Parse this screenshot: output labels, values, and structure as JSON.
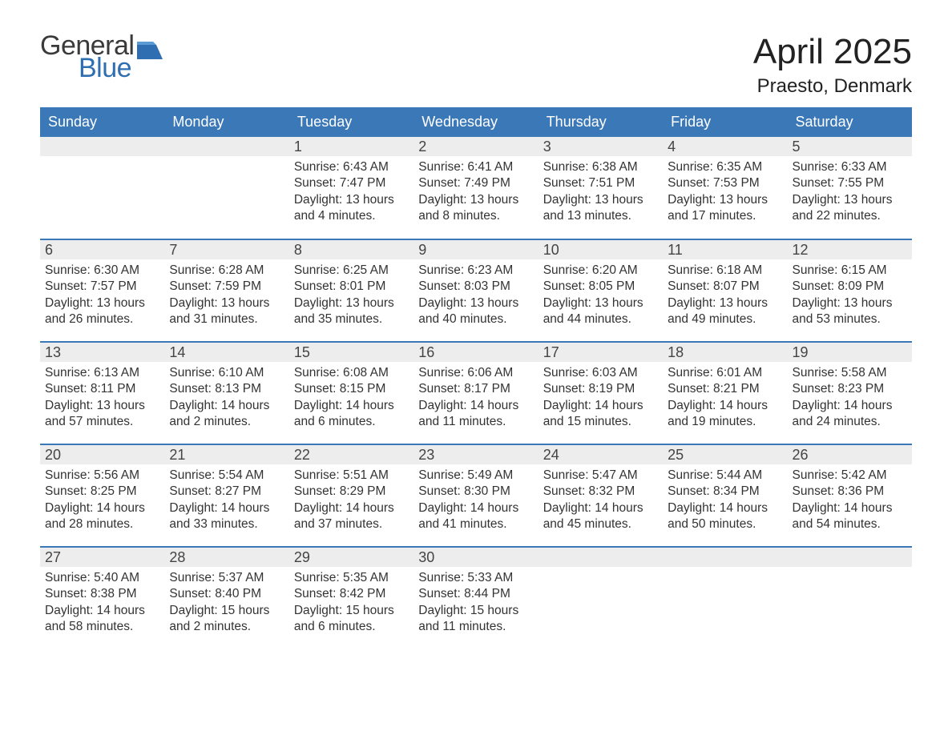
{
  "brand": {
    "word1": "General",
    "word2": "Blue",
    "word1_color": "#3a3a3a",
    "word2_color": "#2f6fb1",
    "flag_color": "#2f6fb1"
  },
  "title": "April 2025",
  "location": "Praesto, Denmark",
  "colors": {
    "header_bg": "#3b78b8",
    "header_text": "#ffffff",
    "row_accent": "#3b78b8",
    "daynum_bg": "#ededed",
    "body_text": "#333333",
    "page_bg": "#ffffff"
  },
  "fonts": {
    "title_size_pt": 33,
    "location_size_pt": 18,
    "dayheader_size_pt": 14,
    "body_size_pt": 12
  },
  "day_headers": [
    "Sunday",
    "Monday",
    "Tuesday",
    "Wednesday",
    "Thursday",
    "Friday",
    "Saturday"
  ],
  "weeks": [
    [
      null,
      null,
      {
        "n": "1",
        "sr": "6:43 AM",
        "ss": "7:47 PM",
        "dl": "13 hours and 4 minutes."
      },
      {
        "n": "2",
        "sr": "6:41 AM",
        "ss": "7:49 PM",
        "dl": "13 hours and 8 minutes."
      },
      {
        "n": "3",
        "sr": "6:38 AM",
        "ss": "7:51 PM",
        "dl": "13 hours and 13 minutes."
      },
      {
        "n": "4",
        "sr": "6:35 AM",
        "ss": "7:53 PM",
        "dl": "13 hours and 17 minutes."
      },
      {
        "n": "5",
        "sr": "6:33 AM",
        "ss": "7:55 PM",
        "dl": "13 hours and 22 minutes."
      }
    ],
    [
      {
        "n": "6",
        "sr": "6:30 AM",
        "ss": "7:57 PM",
        "dl": "13 hours and 26 minutes."
      },
      {
        "n": "7",
        "sr": "6:28 AM",
        "ss": "7:59 PM",
        "dl": "13 hours and 31 minutes."
      },
      {
        "n": "8",
        "sr": "6:25 AM",
        "ss": "8:01 PM",
        "dl": "13 hours and 35 minutes."
      },
      {
        "n": "9",
        "sr": "6:23 AM",
        "ss": "8:03 PM",
        "dl": "13 hours and 40 minutes."
      },
      {
        "n": "10",
        "sr": "6:20 AM",
        "ss": "8:05 PM",
        "dl": "13 hours and 44 minutes."
      },
      {
        "n": "11",
        "sr": "6:18 AM",
        "ss": "8:07 PM",
        "dl": "13 hours and 49 minutes."
      },
      {
        "n": "12",
        "sr": "6:15 AM",
        "ss": "8:09 PM",
        "dl": "13 hours and 53 minutes."
      }
    ],
    [
      {
        "n": "13",
        "sr": "6:13 AM",
        "ss": "8:11 PM",
        "dl": "13 hours and 57 minutes."
      },
      {
        "n": "14",
        "sr": "6:10 AM",
        "ss": "8:13 PM",
        "dl": "14 hours and 2 minutes."
      },
      {
        "n": "15",
        "sr": "6:08 AM",
        "ss": "8:15 PM",
        "dl": "14 hours and 6 minutes."
      },
      {
        "n": "16",
        "sr": "6:06 AM",
        "ss": "8:17 PM",
        "dl": "14 hours and 11 minutes."
      },
      {
        "n": "17",
        "sr": "6:03 AM",
        "ss": "8:19 PM",
        "dl": "14 hours and 15 minutes."
      },
      {
        "n": "18",
        "sr": "6:01 AM",
        "ss": "8:21 PM",
        "dl": "14 hours and 19 minutes."
      },
      {
        "n": "19",
        "sr": "5:58 AM",
        "ss": "8:23 PM",
        "dl": "14 hours and 24 minutes."
      }
    ],
    [
      {
        "n": "20",
        "sr": "5:56 AM",
        "ss": "8:25 PM",
        "dl": "14 hours and 28 minutes."
      },
      {
        "n": "21",
        "sr": "5:54 AM",
        "ss": "8:27 PM",
        "dl": "14 hours and 33 minutes."
      },
      {
        "n": "22",
        "sr": "5:51 AM",
        "ss": "8:29 PM",
        "dl": "14 hours and 37 minutes."
      },
      {
        "n": "23",
        "sr": "5:49 AM",
        "ss": "8:30 PM",
        "dl": "14 hours and 41 minutes."
      },
      {
        "n": "24",
        "sr": "5:47 AM",
        "ss": "8:32 PM",
        "dl": "14 hours and 45 minutes."
      },
      {
        "n": "25",
        "sr": "5:44 AM",
        "ss": "8:34 PM",
        "dl": "14 hours and 50 minutes."
      },
      {
        "n": "26",
        "sr": "5:42 AM",
        "ss": "8:36 PM",
        "dl": "14 hours and 54 minutes."
      }
    ],
    [
      {
        "n": "27",
        "sr": "5:40 AM",
        "ss": "8:38 PM",
        "dl": "14 hours and 58 minutes."
      },
      {
        "n": "28",
        "sr": "5:37 AM",
        "ss": "8:40 PM",
        "dl": "15 hours and 2 minutes."
      },
      {
        "n": "29",
        "sr": "5:35 AM",
        "ss": "8:42 PM",
        "dl": "15 hours and 6 minutes."
      },
      {
        "n": "30",
        "sr": "5:33 AM",
        "ss": "8:44 PM",
        "dl": "15 hours and 11 minutes."
      },
      null,
      null,
      null
    ]
  ],
  "labels": {
    "sunrise": "Sunrise:",
    "sunset": "Sunset:",
    "daylight": "Daylight:"
  }
}
